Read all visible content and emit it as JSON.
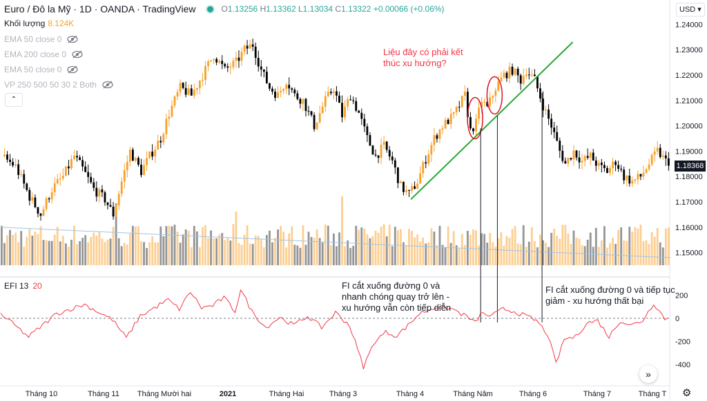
{
  "header": {
    "symbol": "Euro / Đô la Mỹ · 1D · OANDA · TradingView",
    "o_label": "O",
    "o": "1.13256",
    "h_label": "H",
    "h": "1.13362",
    "l_label": "L",
    "l": "1.13034",
    "c_label": "C",
    "c": "1.13322",
    "change": "+0.00066 (+0.06%)"
  },
  "volume_label": "Khối lượng",
  "volume_value": "8.124K",
  "indicators": [
    "EMA 50 close 0",
    "EMA 200 close 0",
    "EMA 50 close 0",
    "VP 250 500 50 30 2 Both"
  ],
  "currency_button": "USD",
  "last_price": "1.18368",
  "efi_label": "EFI 13",
  "efi_value": "20",
  "annotations": {
    "question": "Liệu đây có phải kết thúc xu hướng?",
    "fi_up": "FI cắt xuống đường 0 và nhanh chóng quay trở lên - xu hướng vẫn còn tiếp diễn",
    "fi_down": "FI cắt xuống đường 0 và tiếp tục giảm - xu hướng thất bại"
  },
  "colors": {
    "up": "#f7a12c",
    "down": "#000000",
    "vol_up": "#fcca87",
    "vol_down": "#8a8a8a",
    "efi": "#f23645",
    "trend": "#21a930",
    "circle": "#e0101d"
  },
  "chart_data": {
    "type": "candlestick",
    "price_axis": {
      "ticks": [
        "1.24000",
        "1.23000",
        "1.22000",
        "1.21000",
        "1.20000",
        "1.19000",
        "1.18000",
        "1.17000",
        "1.16000",
        "1.15000"
      ],
      "min": 1.145,
      "max": 1.242
    },
    "efi_axis": {
      "ticks": [
        "200",
        "0",
        "-200",
        "-400"
      ]
    },
    "time_axis": [
      "Tháng 10",
      "Tháng 11",
      "Tháng Mười hai",
      "2021",
      "Tháng Hai",
      "Tháng 3",
      "Tháng 4",
      "Tháng Năm",
      "Tháng 6",
      "Tháng 7",
      "Tháng T"
    ],
    "close_path": [
      [
        0,
        1.188
      ],
      [
        5,
        1.184
      ],
      [
        10,
        1.172
      ],
      [
        14,
        1.165
      ],
      [
        18,
        1.175
      ],
      [
        22,
        1.18
      ],
      [
        26,
        1.188
      ],
      [
        29,
        1.183
      ],
      [
        33,
        1.175
      ],
      [
        37,
        1.171
      ],
      [
        40,
        1.165
      ],
      [
        43,
        1.178
      ],
      [
        46,
        1.19
      ],
      [
        50,
        1.182
      ],
      [
        53,
        1.188
      ],
      [
        57,
        1.195
      ],
      [
        60,
        1.205
      ],
      [
        64,
        1.215
      ],
      [
        68,
        1.212
      ],
      [
        72,
        1.22
      ],
      [
        76,
        1.228
      ],
      [
        80,
        1.222
      ],
      [
        84,
        1.225
      ],
      [
        87,
        1.23
      ],
      [
        90,
        1.232
      ],
      [
        93,
        1.222
      ],
      [
        96,
        1.215
      ],
      [
        99,
        1.212
      ],
      [
        102,
        1.218
      ],
      [
        105,
        1.212
      ],
      [
        108,
        1.21
      ],
      [
        112,
        1.2
      ],
      [
        116,
        1.21
      ],
      [
        119,
        1.215
      ],
      [
        122,
        1.204
      ],
      [
        125,
        1.212
      ],
      [
        128,
        1.205
      ],
      [
        131,
        1.195
      ],
      [
        134,
        1.188
      ],
      [
        137,
        1.192
      ],
      [
        140,
        1.186
      ],
      [
        143,
        1.176
      ],
      [
        146,
        1.173
      ],
      [
        149,
        1.178
      ],
      [
        152,
        1.187
      ],
      [
        155,
        1.195
      ],
      [
        158,
        1.2
      ],
      [
        162,
        1.204
      ],
      [
        166,
        1.212
      ],
      [
        168,
        1.198
      ],
      [
        170,
        1.201
      ],
      [
        172,
        1.21
      ],
      [
        174,
        1.207
      ],
      [
        177,
        1.215
      ],
      [
        180,
        1.22
      ],
      [
        183,
        1.222
      ],
      [
        186,
        1.218
      ],
      [
        188,
        1.222
      ],
      [
        191,
        1.218
      ],
      [
        194,
        1.208
      ],
      [
        197,
        1.2
      ],
      [
        200,
        1.19
      ],
      [
        202,
        1.185
      ],
      [
        205,
        1.19
      ],
      [
        208,
        1.186
      ],
      [
        211,
        1.188
      ],
      [
        214,
        1.184
      ],
      [
        217,
        1.182
      ],
      [
        220,
        1.186
      ],
      [
        223,
        1.18
      ],
      [
        226,
        1.178
      ],
      [
        229,
        1.18
      ],
      [
        232,
        1.185
      ],
      [
        235,
        1.19
      ],
      [
        238,
        1.186
      ]
    ],
    "efi_path": [
      [
        0,
        40
      ],
      [
        10,
        -160
      ],
      [
        20,
        40
      ],
      [
        30,
        120
      ],
      [
        40,
        -10
      ],
      [
        45,
        -170
      ],
      [
        50,
        20
      ],
      [
        60,
        160
      ],
      [
        64,
        80
      ],
      [
        68,
        230
      ],
      [
        72,
        90
      ],
      [
        76,
        110
      ],
      [
        80,
        180
      ],
      [
        84,
        60
      ],
      [
        86,
        250
      ],
      [
        90,
        60
      ],
      [
        95,
        -80
      ],
      [
        100,
        10
      ],
      [
        105,
        -60
      ],
      [
        110,
        20
      ],
      [
        115,
        -80
      ],
      [
        120,
        50
      ],
      [
        125,
        -60
      ],
      [
        130,
        -420
      ],
      [
        134,
        -200
      ],
      [
        138,
        -120
      ],
      [
        142,
        -150
      ],
      [
        146,
        -60
      ],
      [
        150,
        40
      ],
      [
        156,
        100
      ],
      [
        162,
        80
      ],
      [
        168,
        0
      ],
      [
        170,
        -40
      ],
      [
        172,
        40
      ],
      [
        176,
        20
      ],
      [
        180,
        80
      ],
      [
        184,
        60
      ],
      [
        188,
        20
      ],
      [
        192,
        -20
      ],
      [
        196,
        -140
      ],
      [
        199,
        -390
      ],
      [
        202,
        -180
      ],
      [
        206,
        -160
      ],
      [
        210,
        -40
      ],
      [
        214,
        -20
      ],
      [
        218,
        -160
      ],
      [
        222,
        -20
      ],
      [
        226,
        -60
      ],
      [
        230,
        -20
      ],
      [
        234,
        130
      ],
      [
        238,
        0
      ]
    ],
    "volume_trend": [
      [
        0,
        1.16
      ],
      [
        240,
        1.148
      ]
    ],
    "trendline": [
      [
        147,
        1.171
      ],
      [
        205,
        1.233
      ]
    ],
    "circles": [
      [
        170,
        1.203
      ],
      [
        177,
        1.212
      ]
    ],
    "signal_bars": [
      172,
      178,
      194
    ]
  }
}
